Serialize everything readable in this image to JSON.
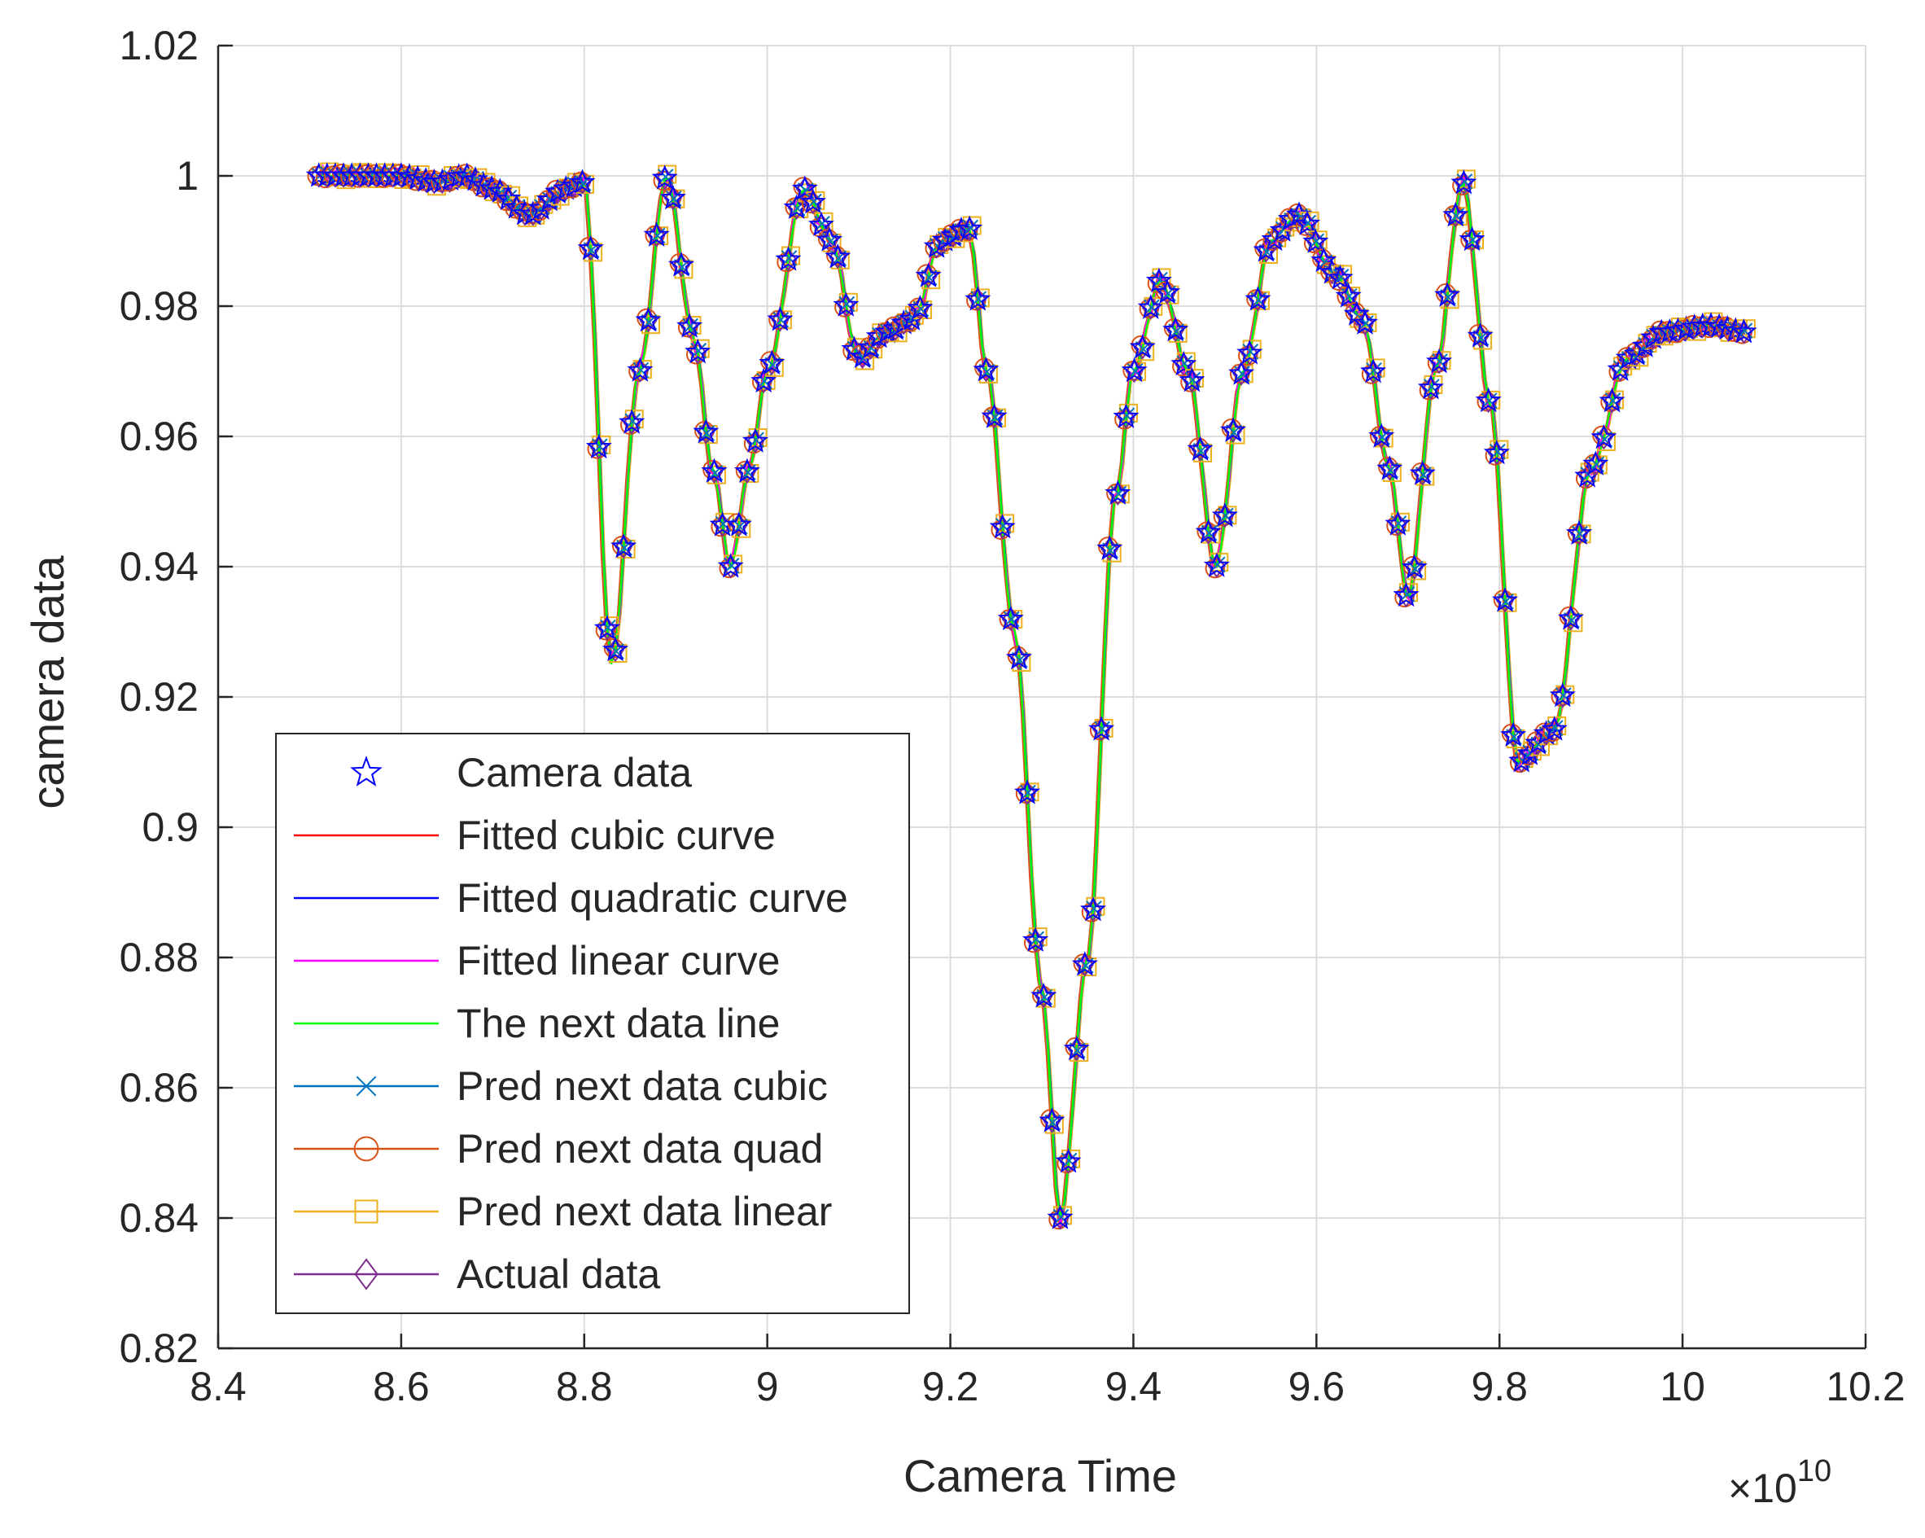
{
  "chart_data": {
    "type": "line",
    "title": "",
    "xlabel": "Camera Time",
    "ylabel": "camera data",
    "x_exponent_label": "×10",
    "x_exponent_power": "10",
    "xlim": [
      8.4,
      10.2
    ],
    "ylim": [
      0.82,
      1.02
    ],
    "grid": true,
    "x_ticks": [
      8.4,
      8.6,
      8.8,
      9.0,
      9.2,
      9.4,
      9.6,
      9.8,
      10.0,
      10.2
    ],
    "x_tick_labels": [
      "8.4",
      "8.6",
      "8.8",
      "9",
      "9.2",
      "9.4",
      "9.6",
      "9.8",
      "10",
      "10.2"
    ],
    "y_ticks": [
      0.82,
      0.84,
      0.86,
      0.88,
      0.9,
      0.92,
      0.94,
      0.96,
      0.98,
      1.0,
      1.02
    ],
    "y_tick_labels": [
      "0.82",
      "0.84",
      "0.86",
      "0.88",
      "0.9",
      "0.92",
      "0.94",
      "0.96",
      "0.98",
      "1",
      "1.02"
    ],
    "legend_position": "bottom-left",
    "legend": [
      {
        "label": "Camera data",
        "color": "#0000FF",
        "marker": "star",
        "line": false
      },
      {
        "label": "Fitted cubic curve",
        "color": "#FF0000",
        "marker": "none",
        "line": true
      },
      {
        "label": "Fitted quadratic curve",
        "color": "#0000FF",
        "marker": "none",
        "line": true
      },
      {
        "label": "Fitted linear curve",
        "color": "#FF00FF",
        "marker": "none",
        "line": true
      },
      {
        "label": "The next data line",
        "color": "#00FF00",
        "marker": "none",
        "line": true
      },
      {
        "label": "Pred next data cubic",
        "color": "#0072BD",
        "marker": "x",
        "line": true
      },
      {
        "label": "Pred next data quad",
        "color": "#D95319",
        "marker": "circle",
        "line": true
      },
      {
        "label": "Pred next data linear",
        "color": "#EDB120",
        "marker": "square",
        "line": true
      },
      {
        "label": "Actual data",
        "color": "#7E2F8E",
        "marker": "diamond",
        "line": true
      }
    ],
    "series_keypoints": {
      "x": [
        8.51,
        8.56,
        8.6,
        8.64,
        8.67,
        8.7,
        8.74,
        8.78,
        8.8,
        8.83,
        8.86,
        8.89,
        8.92,
        8.94,
        8.96,
        8.98,
        9.0,
        9.04,
        9.07,
        9.1,
        9.13,
        9.16,
        9.19,
        9.22,
        9.24,
        9.27,
        9.3,
        9.32,
        9.35,
        9.38,
        9.4,
        9.43,
        9.46,
        9.49,
        9.52,
        9.55,
        9.58,
        9.62,
        9.65,
        9.68,
        9.7,
        9.73,
        9.76,
        9.79,
        9.82,
        9.86,
        9.9,
        9.94,
        9.98,
        10.03,
        10.07
      ],
      "y": [
        1.0,
        1.0,
        1.0,
        0.999,
        1.0,
        0.998,
        0.994,
        0.998,
        0.999,
        0.925,
        0.97,
        1.0,
        0.975,
        0.955,
        0.94,
        0.955,
        0.97,
        0.998,
        0.99,
        0.972,
        0.976,
        0.978,
        0.99,
        0.992,
        0.97,
        0.93,
        0.875,
        0.84,
        0.88,
        0.95,
        0.97,
        0.984,
        0.97,
        0.94,
        0.97,
        0.99,
        0.994,
        0.985,
        0.978,
        0.955,
        0.935,
        0.97,
        0.999,
        0.965,
        0.91,
        0.915,
        0.955,
        0.972,
        0.976,
        0.977,
        0.976
      ]
    }
  }
}
